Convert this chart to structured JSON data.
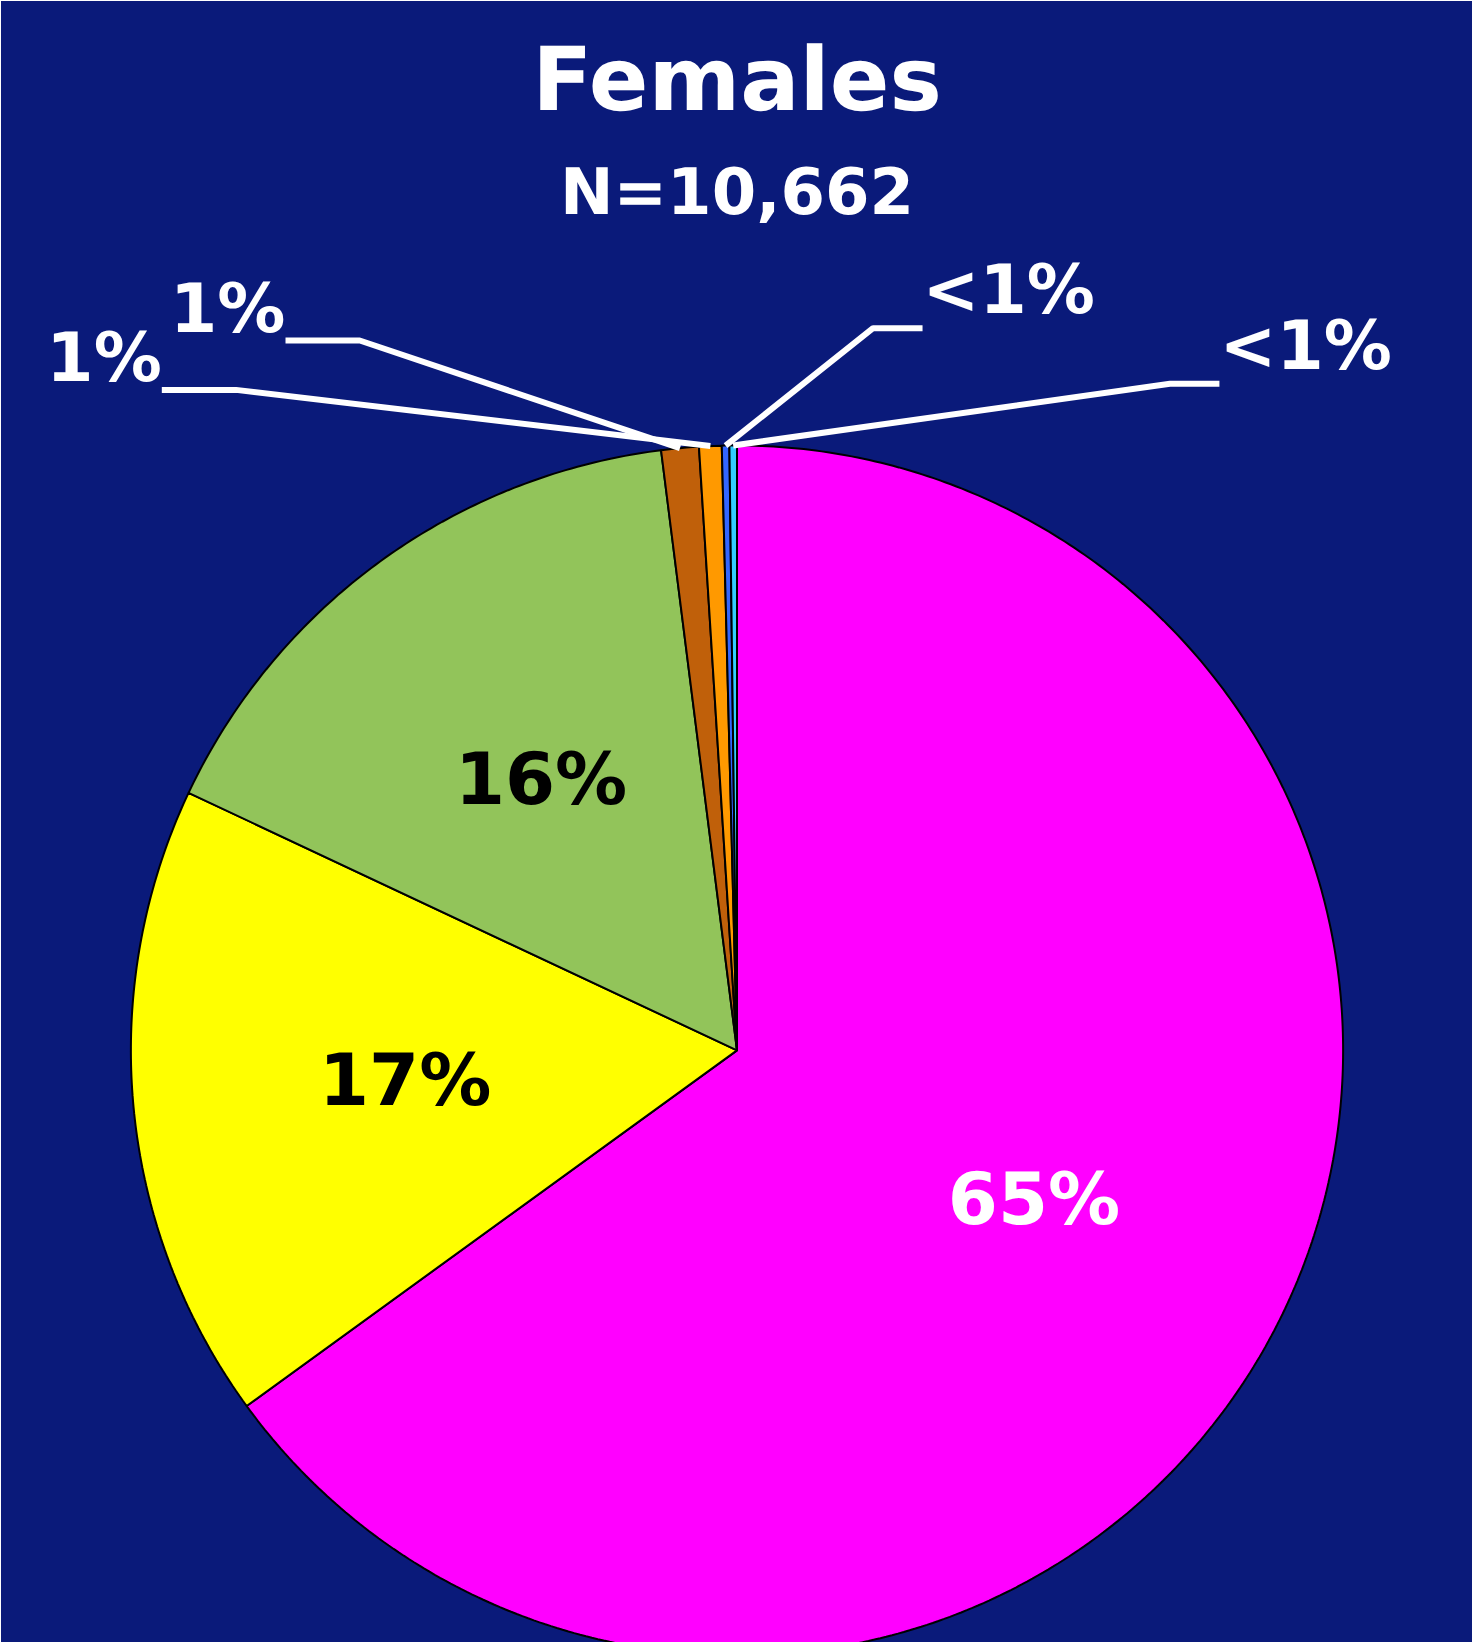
{
  "chart_data": {
    "type": "pie",
    "title": "Females",
    "subtitle": "N=10,662",
    "categories": [
      null,
      null,
      null,
      null,
      null,
      null,
      null
    ],
    "values": [
      65,
      17,
      16,
      1,
      0.6,
      0.2,
      0.2
    ],
    "value_labels": [
      "65%",
      "17%",
      "16%",
      "1%",
      "1%",
      "<1%",
      "<1%"
    ],
    "colors": [
      "#ff00ff",
      "#ffff00",
      "#92c45a",
      "#c0600a",
      "#ff9900",
      "#3366ff",
      "#33ccff"
    ]
  }
}
